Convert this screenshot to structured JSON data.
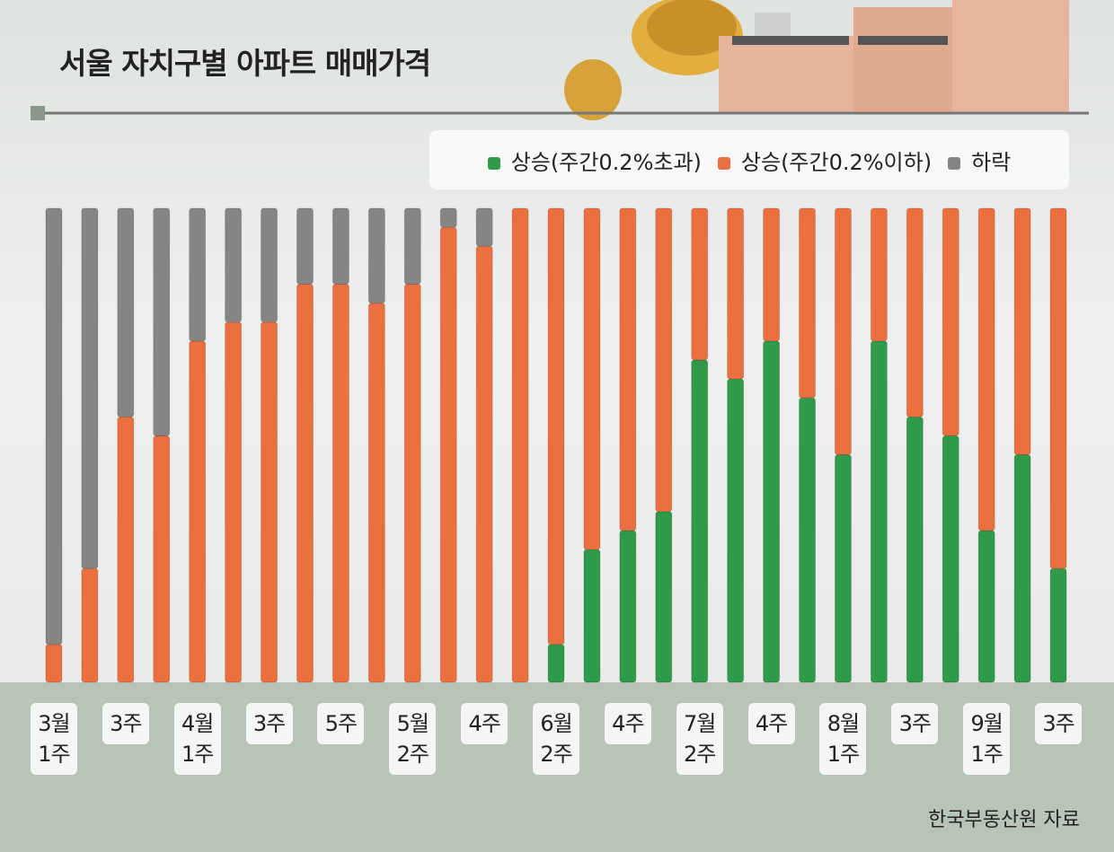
{
  "chart_data": {
    "type": "stacked_bar",
    "title": "서울 자치구별 아파트 매매가격",
    "source": "한국부동산원 자료",
    "categories": [
      "3월\n1주",
      null,
      "3주",
      null,
      "4월\n1주",
      null,
      "3주",
      null,
      "5주",
      null,
      "5월\n2주",
      null,
      "4주",
      null,
      "6월\n2주",
      null,
      "4주",
      null,
      "7월\n2주",
      null,
      "4주",
      null,
      "8월\n1주",
      null,
      "3주",
      null,
      "9월\n1주",
      null,
      "3주"
    ],
    "series": [
      {
        "name": "상승(주간0.2%초과)",
        "color": "#2e9a4a",
        "values": [
          0,
          0,
          0,
          0,
          0,
          0,
          0,
          0,
          0,
          0,
          0,
          0,
          0,
          0,
          2,
          7,
          8,
          9,
          17,
          16,
          18,
          15,
          12,
          18,
          14,
          13,
          8,
          12,
          6
        ]
      },
      {
        "name": "상승(주간0.2%이하)",
        "color": "#ec6f3f",
        "values": [
          2,
          6,
          14,
          13,
          18,
          19,
          19,
          21,
          21,
          20,
          21,
          24,
          23,
          25,
          23,
          18,
          17,
          16,
          8,
          9,
          7,
          10,
          13,
          7,
          11,
          12,
          17,
          13,
          19
        ]
      },
      {
        "name": "하락",
        "color": "#858585",
        "values": [
          23,
          19,
          11,
          12,
          7,
          6,
          6,
          4,
          4,
          5,
          4,
          1,
          2,
          0,
          0,
          0,
          0,
          0,
          0,
          0,
          0,
          0,
          0,
          0,
          0,
          0,
          0,
          0,
          0
        ]
      }
    ]
  }
}
